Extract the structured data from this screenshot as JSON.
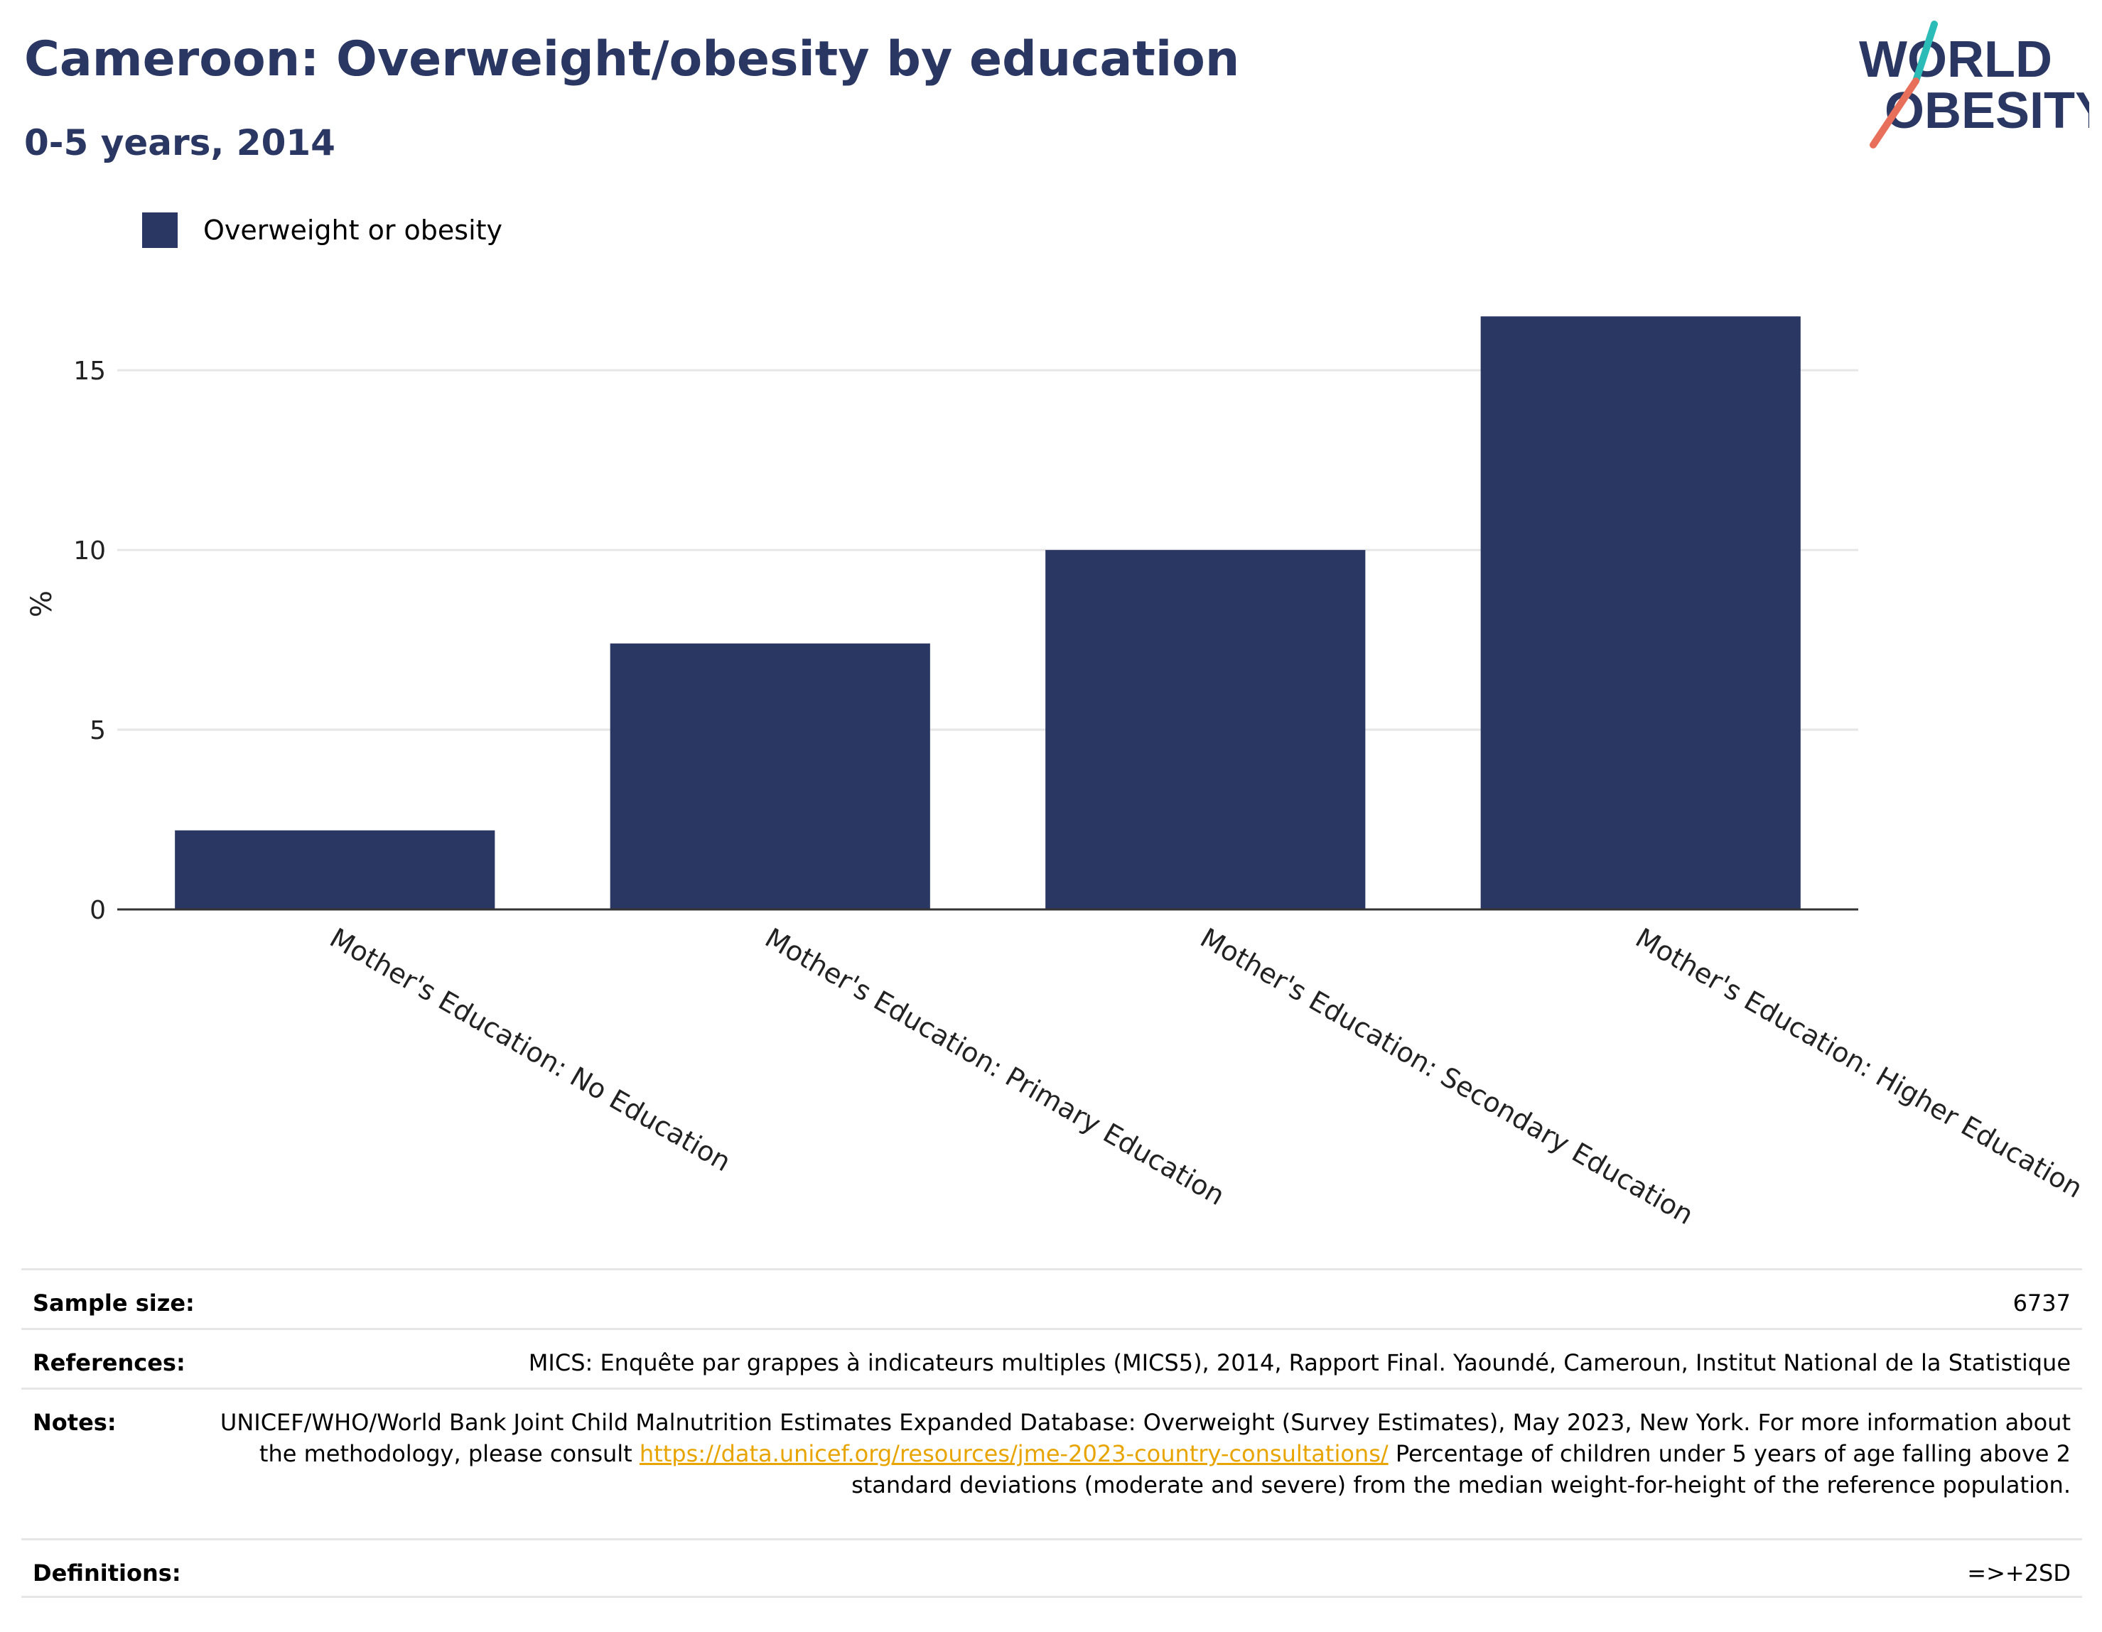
{
  "header": {
    "title": "Cameroon: Overweight/obesity by education",
    "subtitle": "0-5 years, 2014"
  },
  "logo": {
    "line1": "WORLD",
    "line2": "OBESITY",
    "colors": {
      "text": "#2b3763",
      "slash_top": "#2bbcb8",
      "slash_bottom": "#e8705a"
    }
  },
  "colors": {
    "bar": "#2b3763",
    "grid": "#e6e6e6",
    "axis": "#333333"
  },
  "chart_data": {
    "type": "bar",
    "categories": [
      "Mother's Education: No Education",
      "Mother's Education: Primary Education",
      "Mother's Education: Secondary Education",
      "Mother's Education: Higher Education"
    ],
    "series": [
      {
        "name": "Overweight or obesity",
        "values": [
          2.2,
          7.4,
          10.0,
          16.5
        ]
      }
    ],
    "ylabel": "%",
    "ylim": [
      0,
      17
    ],
    "yticks": [
      0,
      5,
      10,
      15
    ],
    "grid": true,
    "legend": "top-left"
  },
  "meta": {
    "sample_size": {
      "label": "Sample size:",
      "value": "6737"
    },
    "references": {
      "label": "References:",
      "value": "MICS: Enquête par grappes à indicateurs multiples (MICS5), 2014, Rapport Final. Yaoundé, Cameroun, Institut National de la Statistique"
    },
    "notes": {
      "label": "Notes:",
      "text1": "UNICEF/WHO/World Bank Joint Child Malnutrition Estimates Expanded Database: Overweight (Survey Estimates), May 2023, New York. For more information about the methodology, please consult",
      "link": "https://data.unicef.org/resources/jme-2023-country-consultations/",
      "text2": "Percentage of children under 5 years of age falling above 2 standard deviations (moderate and severe) from the median weight-for-height of the reference population."
    },
    "definitions": {
      "label": "Definitions:",
      "value": "=>+2SD"
    }
  }
}
